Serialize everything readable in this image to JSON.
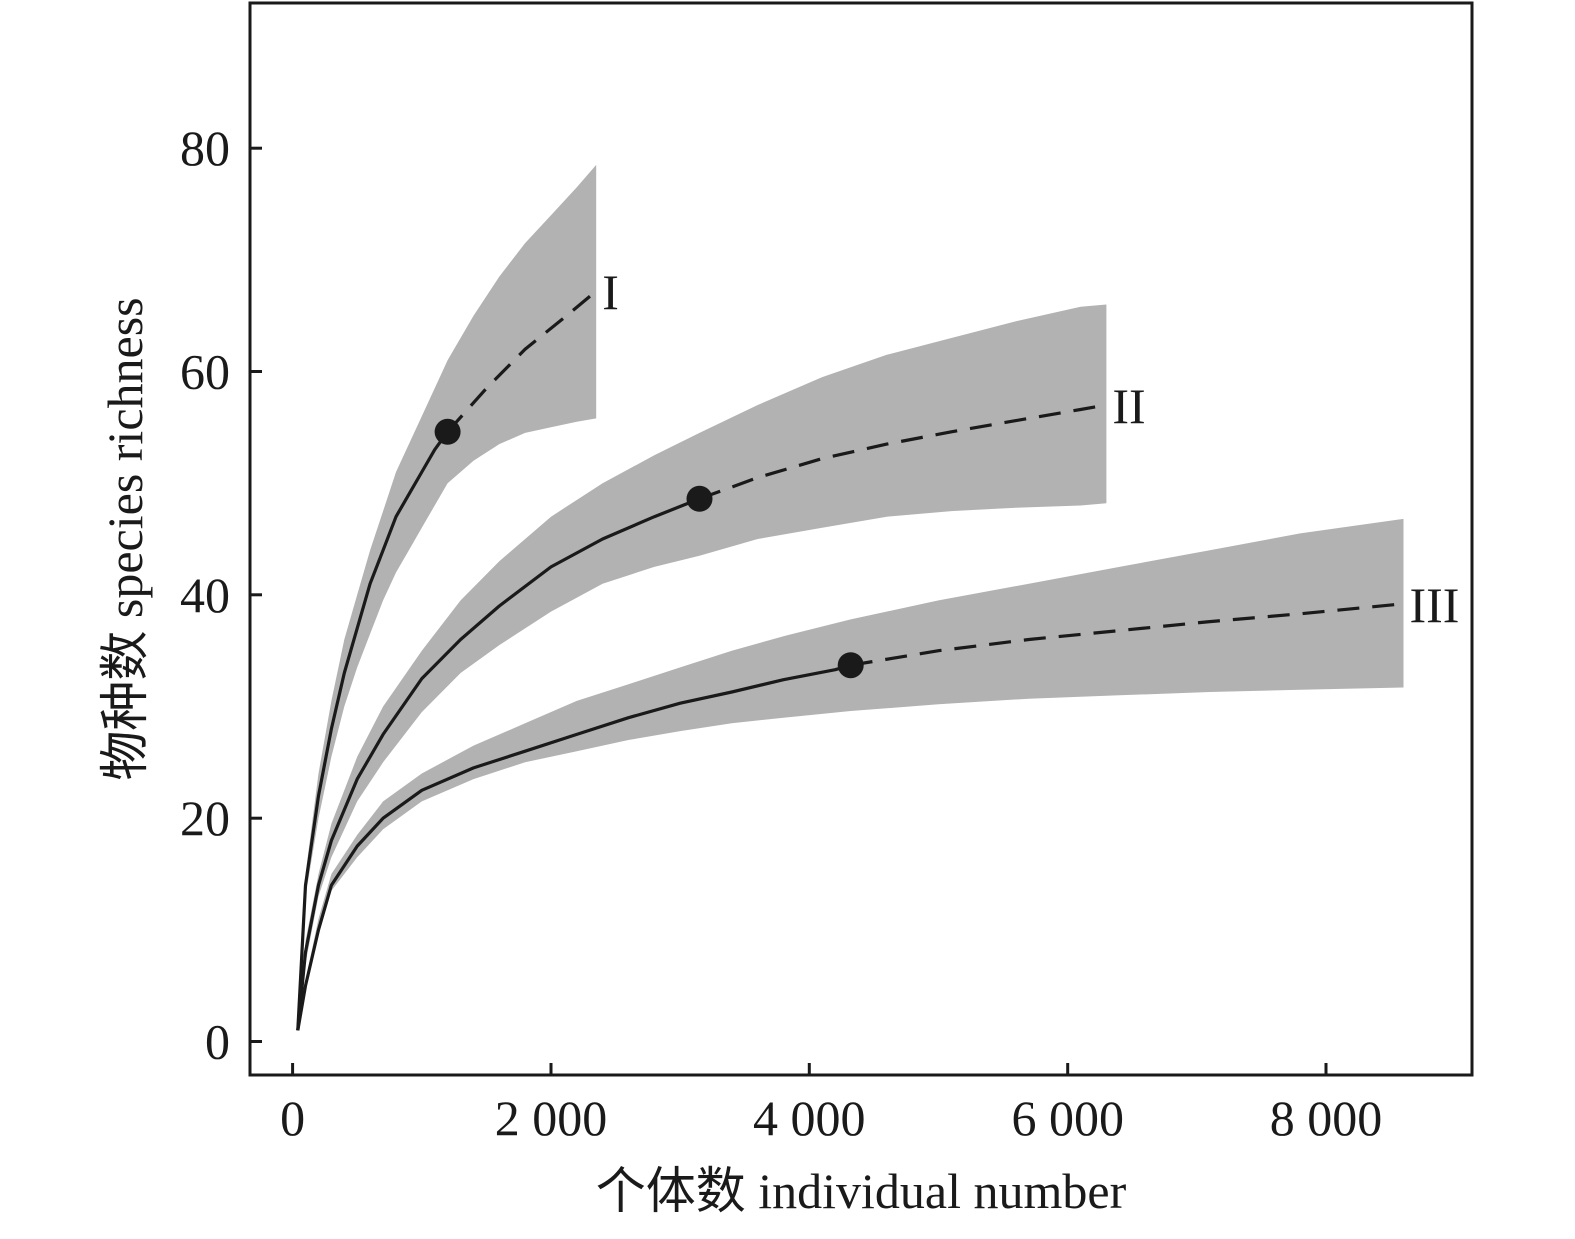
{
  "chart_data": {
    "type": "line",
    "xlabel": "个体数 individual number",
    "ylabel": "物种数 species richness",
    "xlim": [
      -330,
      9130
    ],
    "ylim": [
      -3,
      93
    ],
    "xticks": [
      0,
      2000,
      4000,
      6000,
      8000
    ],
    "xtick_labels": [
      "0",
      "2 000",
      "4 000",
      "6 000",
      "8 000"
    ],
    "yticks": [
      0,
      20,
      40,
      60,
      80
    ],
    "ytick_labels": [
      "0",
      "20",
      "40",
      "60",
      "80"
    ],
    "grid": false,
    "legend": "none",
    "colors": {
      "band": "#b2b2b2",
      "line": "#1a1a1a",
      "frame": "#1a1a1a"
    },
    "series": [
      {
        "name": "I",
        "observed_x": [
          40,
          100,
          200,
          300,
          400,
          500,
          600,
          700,
          800,
          900,
          1000,
          1100,
          1200
        ],
        "observed_y": [
          1,
          14,
          22,
          28,
          33,
          37,
          41,
          44,
          47,
          49,
          51,
          53,
          54.6
        ],
        "reference_point": [
          1200,
          54.6
        ],
        "extrapolated_x": [
          1200,
          1500,
          1800,
          2100,
          2350
        ],
        "extrapolated_y": [
          54.6,
          58.5,
          62,
          64.8,
          67.2
        ],
        "ci_x": [
          40,
          100,
          200,
          300,
          400,
          500,
          600,
          700,
          800,
          900,
          1000,
          1100,
          1200,
          1400,
          1600,
          1800,
          2000,
          2200,
          2350
        ],
        "ci_lower": [
          1,
          13,
          20,
          25.5,
          30,
          33.5,
          36.5,
          39.5,
          42,
          44,
          46,
          48,
          50,
          52,
          53.5,
          54.5,
          55,
          55.5,
          55.8
        ],
        "ci_upper": [
          1,
          15,
          24,
          30.5,
          36,
          40,
          44,
          47.5,
          51,
          53.5,
          56,
          58.5,
          61,
          65,
          68.5,
          71.5,
          74,
          76.5,
          78.5
        ]
      },
      {
        "name": "II",
        "observed_x": [
          40,
          100,
          200,
          300,
          500,
          700,
          1000,
          1300,
          1600,
          2000,
          2400,
          2800,
          3150
        ],
        "observed_y": [
          1,
          8,
          14,
          18,
          23.5,
          27.5,
          32.5,
          36,
          39,
          42.5,
          45,
          47,
          48.6
        ],
        "reference_point": [
          3150,
          48.6
        ],
        "extrapolated_x": [
          3150,
          3600,
          4100,
          4600,
          5100,
          5600,
          6100,
          6300
        ],
        "extrapolated_y": [
          48.6,
          50.5,
          52.2,
          53.5,
          54.6,
          55.6,
          56.6,
          57
        ],
        "ci_x": [
          40,
          100,
          200,
          300,
          500,
          700,
          1000,
          1300,
          1600,
          2000,
          2400,
          2800,
          3150,
          3600,
          4100,
          4600,
          5100,
          5600,
          6100,
          6300
        ],
        "ci_lower": [
          1,
          7,
          13,
          16.5,
          21.5,
          25,
          29.5,
          33,
          35.5,
          38.5,
          41,
          42.5,
          43.5,
          45,
          46,
          47,
          47.5,
          47.8,
          48,
          48.2
        ],
        "ci_upper": [
          1,
          9,
          15,
          19.5,
          25.5,
          30,
          35,
          39.5,
          43,
          47,
          50,
          52.5,
          54.5,
          57,
          59.5,
          61.5,
          63,
          64.5,
          65.8,
          66
        ]
      },
      {
        "name": "III",
        "observed_x": [
          40,
          100,
          200,
          300,
          500,
          700,
          1000,
          1400,
          1800,
          2200,
          2600,
          3000,
          3400,
          3800,
          4200,
          4320
        ],
        "observed_y": [
          1,
          5,
          10,
          14,
          17.5,
          20,
          22.5,
          24.5,
          26,
          27.5,
          29,
          30.3,
          31.3,
          32.4,
          33.3,
          33.7
        ],
        "reference_point": [
          4320,
          33.7
        ],
        "extrapolated_x": [
          4320,
          5000,
          5700,
          6400,
          7100,
          7800,
          8600
        ],
        "extrapolated_y": [
          33.7,
          35,
          36,
          36.8,
          37.6,
          38.3,
          39.2
        ],
        "ci_x": [
          40,
          100,
          200,
          300,
          500,
          700,
          1000,
          1400,
          1800,
          2200,
          2600,
          3000,
          3400,
          3800,
          4320,
          5000,
          5700,
          6400,
          7100,
          7800,
          8600
        ],
        "ci_lower": [
          1,
          4.5,
          9.5,
          13.5,
          16.5,
          19,
          21.5,
          23.5,
          25,
          26,
          27,
          27.8,
          28.5,
          29,
          29.6,
          30.2,
          30.7,
          31,
          31.3,
          31.5,
          31.7
        ],
        "ci_upper": [
          1,
          5.5,
          11,
          15,
          18.5,
          21.5,
          24,
          26.5,
          28.5,
          30.5,
          32,
          33.5,
          35,
          36.3,
          37.8,
          39.5,
          41,
          42.5,
          44,
          45.5,
          46.8
        ]
      }
    ]
  }
}
